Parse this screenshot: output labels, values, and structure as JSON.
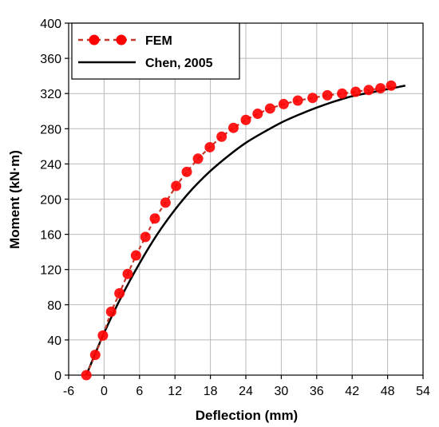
{
  "chart_data": {
    "type": "line",
    "xlabel": "Deflection (mm)",
    "ylabel": "Moment (kN·m)",
    "xlim": [
      -6,
      54
    ],
    "ylim": [
      0,
      400
    ],
    "xticks": [
      "-6",
      "0",
      "6",
      "12",
      "18",
      "24",
      "30",
      "36",
      "42",
      "48",
      "54"
    ],
    "yticks": [
      "0",
      "40",
      "80",
      "120",
      "160",
      "200",
      "240",
      "280",
      "320",
      "360",
      "400"
    ],
    "grid": true,
    "legend_position": "top-left",
    "series": [
      {
        "name": "FEM",
        "style": "dashed-line-with-circle-markers",
        "color": "#ff0000",
        "line_color": "#c0392b",
        "x": [
          -3.0,
          -1.5,
          -0.2,
          1.2,
          2.6,
          4.0,
          5.4,
          7.0,
          8.6,
          10.4,
          12.2,
          14.0,
          15.9,
          17.9,
          19.9,
          21.9,
          24.0,
          26.0,
          28.1,
          30.4,
          32.8,
          35.3,
          37.8,
          40.3,
          42.6,
          44.8,
          46.8,
          48.6
        ],
        "y": [
          0,
          23,
          45,
          72,
          93,
          115,
          136,
          157,
          178,
          196,
          215,
          231,
          246,
          259,
          271,
          281,
          290,
          297,
          303,
          308,
          312,
          315,
          318,
          320,
          322,
          324,
          326,
          329
        ]
      },
      {
        "name": "Chen, 2005",
        "style": "solid-line",
        "color": "#000000",
        "x": [
          -3.0,
          0,
          3,
          6,
          9,
          12,
          15,
          18,
          21,
          24,
          27,
          30,
          33,
          36,
          39,
          42,
          45,
          48,
          51
        ],
        "y": [
          0,
          48,
          90,
          127,
          160,
          188,
          212,
          232,
          249,
          264,
          276,
          287,
          296,
          304,
          311,
          317,
          321,
          325,
          329
        ]
      }
    ]
  }
}
